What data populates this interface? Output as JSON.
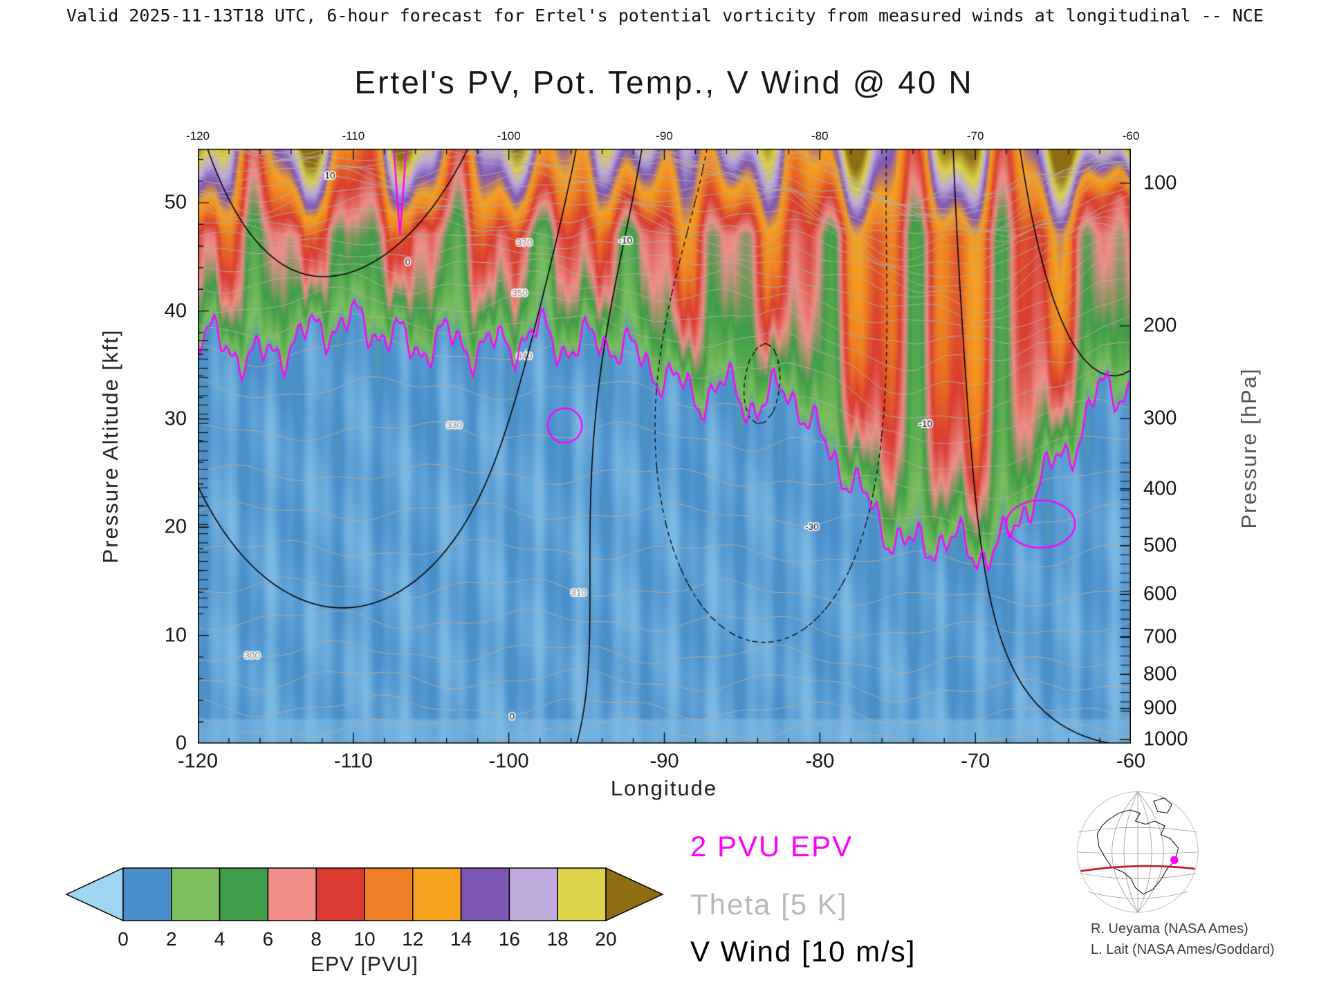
{
  "header": {
    "validity_line": "Valid 2025-11-13T18 UTC, 6-hour forecast for Ertel's potential vorticity from measured winds at longitudinal -- NCE"
  },
  "chart_data": {
    "type": "heatmap",
    "title": "Ertel's PV, Pot. Temp., V Wind @ 40 N",
    "xlabel": "Longitude",
    "ylabel_left": "Pressure Altitude [kft]",
    "ylabel_right": "Pressure [hPa]",
    "xlim": [
      -120,
      -60
    ],
    "ylim_kft": [
      0,
      55
    ],
    "x_ticks": [
      -120,
      -110,
      -100,
      -90,
      -80,
      -70,
      -60
    ],
    "x_minor_step": 2,
    "y_ticks_kft": [
      0,
      10,
      20,
      30,
      40,
      50
    ],
    "y_minor_step_kft": 2,
    "pressure_ticks_hPa": [
      100,
      200,
      300,
      400,
      500,
      600,
      700,
      800,
      900,
      1000
    ],
    "fields": {
      "fill": "Ertel's potential vorticity (EPV) [PVU]",
      "contour_magenta": {
        "label": "2 PVU EPV",
        "level_pvu": 2,
        "color": "#ff00ff"
      },
      "contour_gray": {
        "label": "Theta [5 K]",
        "interval_K": 5,
        "color": "#b4aca2",
        "labeled_levels": [
          300,
          310,
          330,
          340,
          350,
          370
        ]
      },
      "contour_black": {
        "label": "V Wind [10 m/s]",
        "interval_ms": 10,
        "color": "#000000",
        "labeled_levels": [
          -30,
          -10,
          0,
          10
        ]
      }
    },
    "tropopause_2pvu": {
      "lon": [
        -120,
        -118,
        -116,
        -114,
        -112,
        -110,
        -108,
        -106,
        -104,
        -102,
        -100,
        -98,
        -96,
        -94,
        -92,
        -90,
        -88,
        -86,
        -84,
        -82,
        -80,
        -78,
        -76,
        -74,
        -72,
        -70,
        -68,
        -66,
        -64,
        -62,
        -60
      ],
      "alt_kft": [
        38,
        36.5,
        35.5,
        37,
        38.5,
        39,
        38,
        36.5,
        37.5,
        36.5,
        37,
        38,
        36.5,
        37.5,
        36,
        34,
        32,
        33,
        31,
        33,
        28,
        24.5,
        20,
        18,
        19,
        17.5,
        18.5,
        24,
        27,
        32.5,
        33
      ]
    },
    "colorbar": {
      "label": "EPV [PVU]",
      "ticks": [
        0,
        2,
        4,
        6,
        8,
        10,
        12,
        14,
        16,
        18,
        20
      ],
      "under_color": "#9fd6f2",
      "over_color": "#8e6d12",
      "segment_colors": [
        "#4a8fcb",
        "#7bbf5e",
        "#3f9e47",
        "#ef8f88",
        "#da3b30",
        "#ef7f24",
        "#f6a21f",
        "#7e57b5",
        "#c0abdf",
        "#ddd24a"
      ]
    }
  },
  "legend": {
    "items": [
      {
        "label": "2 PVU EPV",
        "color": "#ff00ff"
      },
      {
        "label": "Theta [5 K]",
        "color": "#b8b8b8"
      },
      {
        "label": "V Wind [10 m/s]",
        "color": "#000000"
      }
    ]
  },
  "credits": [
    "R. Ueyama (NASA Ames)",
    "L. Lait (NASA Ames/Goddard)"
  ]
}
